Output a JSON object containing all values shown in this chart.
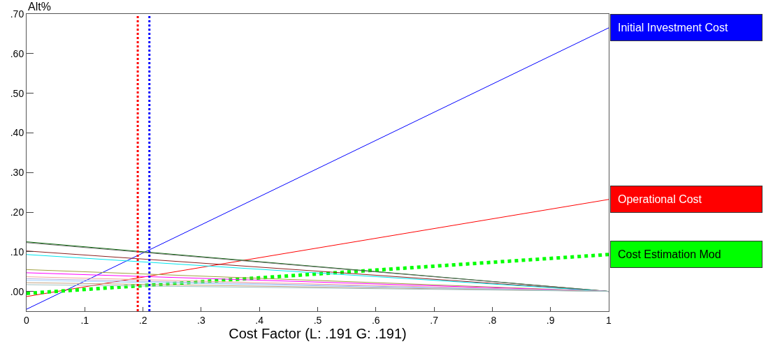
{
  "chart_data": {
    "type": "line",
    "xlabel": "Cost Factor (L: .191 G: .191)",
    "ylabel": "Alt%",
    "x": [
      0,
      1
    ],
    "series": [
      {
        "name": "Initial Investment Cost",
        "color": "#0000ff",
        "values": [
          -0.045,
          0.665
        ]
      },
      {
        "name": "Operational Cost",
        "color": "#ff0000",
        "values": [
          -0.013,
          0.232
        ]
      },
      {
        "name": "Cost Estimation Mod",
        "color": "#00ff00",
        "values": [
          -0.005,
          0.093
        ],
        "line_style": "dotted"
      },
      {
        "color": "#006400",
        "values": [
          0.125,
          0.0
        ]
      },
      {
        "color": "#707070",
        "values": [
          0.123,
          0.0
        ]
      },
      {
        "color": "#8b2020",
        "values": [
          0.102,
          0.0
        ]
      },
      {
        "color": "#00e5ee",
        "values": [
          0.093,
          0.0
        ]
      },
      {
        "color": "#a0a040",
        "values": [
          0.055,
          0.0
        ]
      },
      {
        "color": "#ff00ff",
        "values": [
          0.047,
          0.0
        ]
      },
      {
        "color": "#f4a6a0",
        "values": [
          0.037,
          0.0
        ]
      },
      {
        "color": "#b0b0e0",
        "values": [
          0.032,
          0.0
        ]
      },
      {
        "color": "#a0d0ff",
        "values": [
          0.028,
          0.0
        ]
      },
      {
        "color": "#c0a080",
        "values": [
          0.022,
          0.0
        ]
      },
      {
        "color": "#a0c0c0",
        "values": [
          0.017,
          0.0
        ]
      }
    ],
    "xlim": [
      0,
      1
    ],
    "ylim": [
      -0.05,
      0.7
    ],
    "xticks": [
      0,
      {
        "value": 0.1,
        "label": ".1"
      },
      {
        "value": 0.2,
        "label": ".2"
      },
      {
        "value": 0.3,
        "label": ".3"
      },
      {
        "value": 0.4,
        "label": ".4"
      },
      {
        "value": 0.5,
        "label": ".5"
      },
      {
        "value": 0.6,
        "label": ".6"
      },
      {
        "value": 0.7,
        "label": ".7"
      },
      {
        "value": 0.8,
        "label": ".8"
      },
      {
        "value": 0.9,
        "label": ".9"
      },
      1
    ],
    "yticks": [
      {
        "value": 0,
        "label": ".00"
      },
      {
        "value": 0.1,
        "label": ".10"
      },
      {
        "value": 0.2,
        "label": ".20"
      },
      {
        "value": 0.3,
        "label": ".30"
      },
      {
        "value": 0.4,
        "label": ".40"
      },
      {
        "value": 0.5,
        "label": ".50"
      },
      {
        "value": 0.6,
        "label": ".60"
      },
      {
        "value": 0.7,
        "label": ".70"
      }
    ],
    "ref_lines": [
      {
        "axis": "x",
        "value": 0.191,
        "color": "#ff0000",
        "line_style": "dotted"
      },
      {
        "axis": "x",
        "value": 0.211,
        "color": "#0000ff",
        "line_style": "dotted"
      }
    ],
    "legend": false
  }
}
